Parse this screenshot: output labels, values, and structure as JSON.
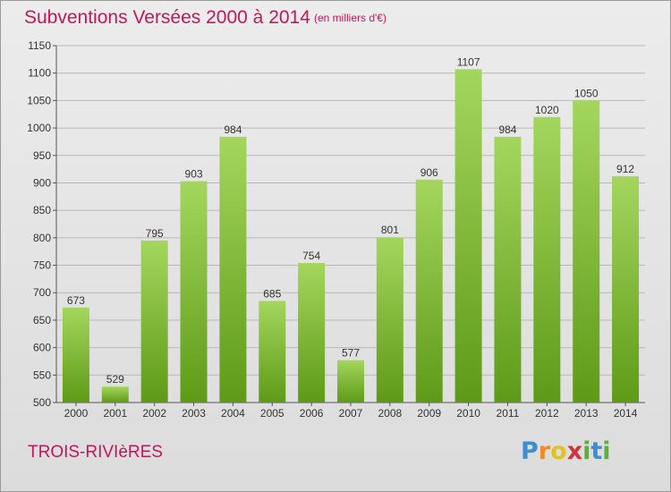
{
  "header": {
    "title": "Subventions Versées 2000 à 2014",
    "subtitle": "(en milliers d'€)"
  },
  "footer": {
    "place": "TROIS-RIVIèRES",
    "logo": "Proxiti"
  },
  "colors": {
    "title": "#c2185b",
    "bar_light": "#a4d65e",
    "bar_dark": "#5e9a17",
    "background": "#e4e4e4",
    "grid": "#b8b8b8"
  },
  "chart_data": {
    "type": "bar",
    "categories": [
      "2000",
      "2001",
      "2002",
      "2003",
      "2004",
      "2005",
      "2006",
      "2007",
      "2008",
      "2009",
      "2010",
      "2011",
      "2012",
      "2013",
      "2014"
    ],
    "values": [
      673,
      529,
      795,
      903,
      984,
      685,
      754,
      577,
      801,
      906,
      1107,
      984,
      1020,
      1050,
      912
    ],
    "title": "Subventions Versées 2000 à 2014",
    "subtitle": "(en milliers d'€)",
    "xlabel": "",
    "ylabel": "",
    "ylim": [
      500,
      1150
    ],
    "yticks": [
      500,
      550,
      600,
      650,
      700,
      750,
      800,
      850,
      900,
      950,
      1000,
      1050,
      1100,
      1150
    ],
    "grid": "horizontal",
    "data_labels": true,
    "legend": "none"
  }
}
